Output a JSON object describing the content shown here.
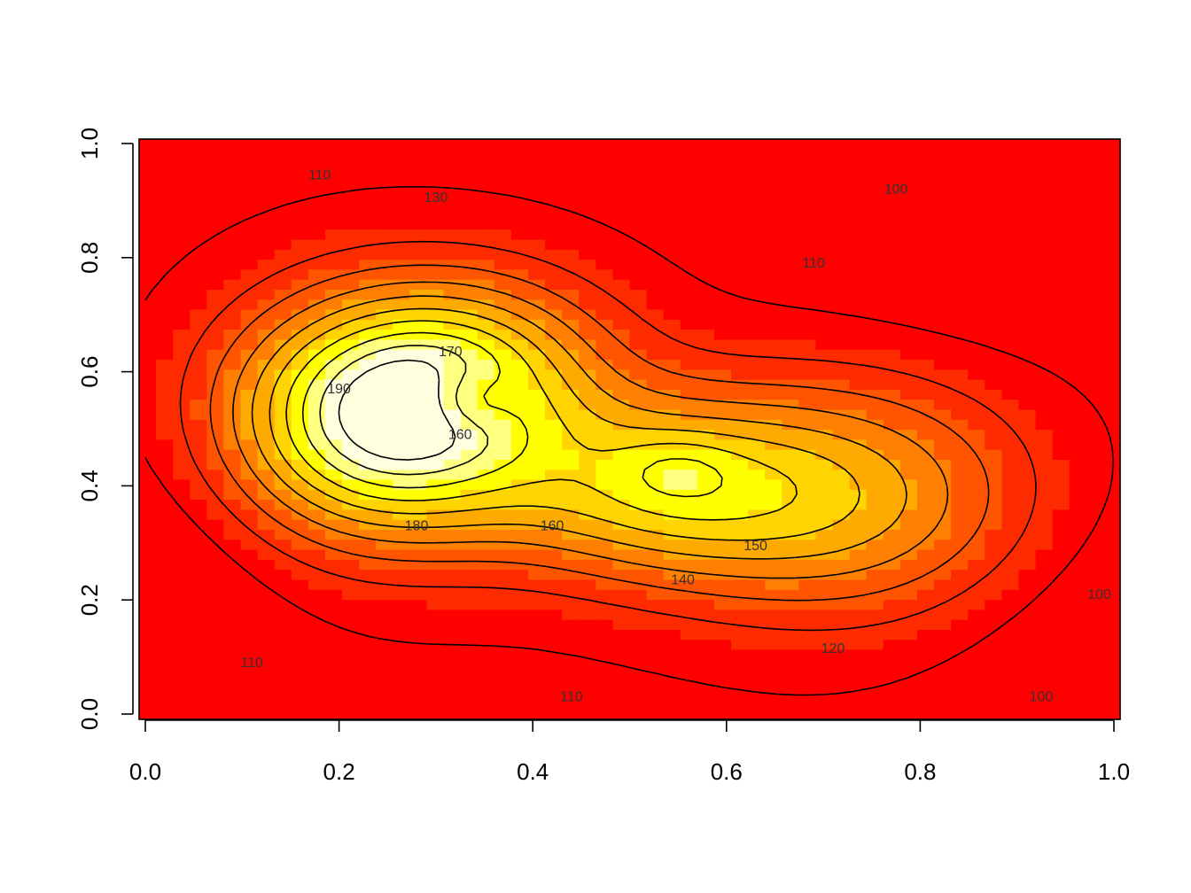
{
  "chart_data": {
    "type": "heatmap",
    "title": "",
    "xlabel": "",
    "ylabel": "",
    "xlim": [
      0,
      1
    ],
    "ylim": [
      0,
      1
    ],
    "grid": false,
    "legend": "none",
    "x_ticks": [
      0.0,
      0.2,
      0.4,
      0.6,
      0.8,
      1.0
    ],
    "x_tick_labels": [
      "0.0",
      "0.2",
      "0.4",
      "0.6",
      "0.8",
      "1.0"
    ],
    "y_ticks": [
      0.0,
      0.2,
      0.4,
      0.6,
      0.8,
      1.0
    ],
    "y_tick_labels": [
      "0.0",
      "0.2",
      "0.4",
      "0.6",
      "0.8",
      "1.0"
    ],
    "color_scale": "heat (low red to high white)",
    "colors": [
      "#ff0000",
      "#ff2b00",
      "#ff5500",
      "#ff8000",
      "#ffaa00",
      "#ffd400",
      "#ffff00",
      "#ffff80",
      "#ffffe0"
    ],
    "z_range": [
      95,
      195
    ],
    "contour_levels": [
      100,
      110,
      120,
      130,
      140,
      150,
      160,
      170,
      180,
      190
    ],
    "contour_labels": [
      {
        "text": "110",
        "x": 0.18,
        "y": 0.945
      },
      {
        "text": "130",
        "x": 0.3,
        "y": 0.905
      },
      {
        "text": "100",
        "x": 0.775,
        "y": 0.92
      },
      {
        "text": "110",
        "x": 0.69,
        "y": 0.79
      },
      {
        "text": "170",
        "x": 0.315,
        "y": 0.635
      },
      {
        "text": "190",
        "x": 0.2,
        "y": 0.57
      },
      {
        "text": "160",
        "x": 0.325,
        "y": 0.49
      },
      {
        "text": "180",
        "x": 0.28,
        "y": 0.33
      },
      {
        "text": "160",
        "x": 0.42,
        "y": 0.33
      },
      {
        "text": "150",
        "x": 0.63,
        "y": 0.295
      },
      {
        "text": "140",
        "x": 0.555,
        "y": 0.235
      },
      {
        "text": "120",
        "x": 0.71,
        "y": 0.115
      },
      {
        "text": "110",
        "x": 0.44,
        "y": 0.03
      },
      {
        "text": "110",
        "x": 0.11,
        "y": 0.09
      },
      {
        "text": "100",
        "x": 0.985,
        "y": 0.21
      },
      {
        "text": "100",
        "x": 0.925,
        "y": 0.03
      }
    ]
  }
}
